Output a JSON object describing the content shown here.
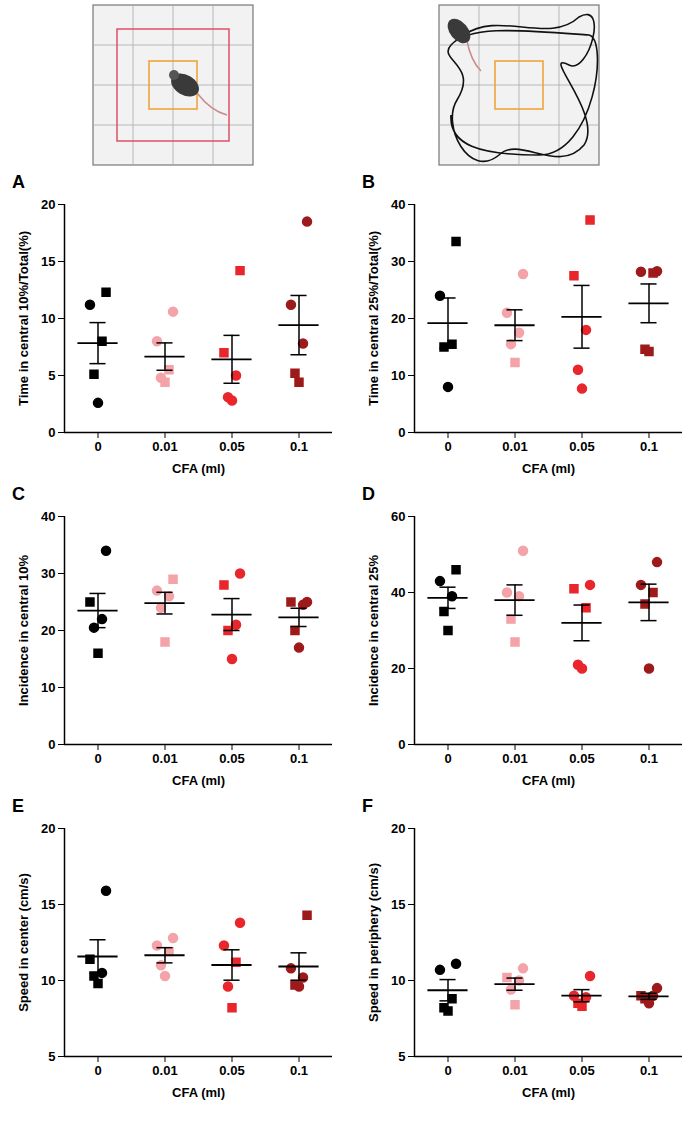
{
  "chart_data": [
    {
      "type": "scatter",
      "title": "A",
      "xlabel": "CFA (ml)",
      "ylabel": "Time in central 10%/Total(%)",
      "categories": [
        "0",
        "0.01",
        "0.05",
        "0.1"
      ],
      "colors": [
        "#000000",
        "#f4a3a8",
        "#e8262b",
        "#9e1a1a"
      ],
      "ylim": [
        0,
        20
      ],
      "yticks": [
        0,
        5,
        10,
        15,
        20
      ],
      "values": [
        [
          12.3,
          11.2,
          8.0,
          5.1,
          2.6
        ],
        [
          10.6,
          8.0,
          5.5,
          4.8,
          4.4
        ],
        [
          14.2,
          7.0,
          5.0,
          3.1,
          2.8
        ],
        [
          18.5,
          11.2,
          7.8,
          5.2,
          4.4
        ]
      ],
      "markers": [
        [
          "square",
          "circle",
          "square",
          "square",
          "circle"
        ],
        [
          "circle",
          "circle",
          "square",
          "circle",
          "square"
        ],
        [
          "square",
          "square",
          "circle",
          "circle",
          "circle"
        ],
        [
          "circle",
          "circle",
          "circle",
          "square",
          "square"
        ]
      ],
      "mean": [
        7.84,
        6.66,
        6.42,
        9.42
      ],
      "sem": [
        1.8,
        1.2,
        2.1,
        2.6
      ]
    },
    {
      "type": "scatter",
      "title": "B",
      "xlabel": "CFA (ml)",
      "ylabel": "Time in central 25%/Total(%)",
      "categories": [
        "0",
        "0.01",
        "0.05",
        "0.1"
      ],
      "colors": [
        "#000000",
        "#f4a3a8",
        "#e8262b",
        "#9e1a1a"
      ],
      "ylim": [
        0,
        40
      ],
      "yticks": [
        0,
        10,
        20,
        30,
        40
      ],
      "values": [
        [
          33.5,
          24.0,
          15.5,
          15.0,
          8.0
        ],
        [
          27.8,
          21.0,
          17.5,
          15.5,
          12.3
        ],
        [
          37.3,
          27.5,
          18.0,
          11.0,
          7.7
        ],
        [
          28.3,
          28.2,
          28.0,
          14.6,
          14.2
        ]
      ],
      "markers": [
        [
          "square",
          "circle",
          "square",
          "square",
          "circle"
        ],
        [
          "circle",
          "circle",
          "circle",
          "circle",
          "square"
        ],
        [
          "square",
          "square",
          "circle",
          "circle",
          "circle"
        ],
        [
          "circle",
          "circle",
          "square",
          "square",
          "square"
        ]
      ],
      "mean": [
        19.2,
        18.82,
        20.3,
        22.66
      ],
      "sem": [
        4.4,
        2.7,
        5.5,
        3.4
      ]
    },
    {
      "type": "scatter",
      "title": "C",
      "xlabel": "CFA (ml)",
      "ylabel": "Incidence in central 10%",
      "categories": [
        "0",
        "0.01",
        "0.05",
        "0.1"
      ],
      "colors": [
        "#000000",
        "#f4a3a8",
        "#e8262b",
        "#9e1a1a"
      ],
      "ylim": [
        0,
        40
      ],
      "yticks": [
        0,
        10,
        20,
        30,
        40
      ],
      "values": [
        [
          34,
          25,
          22,
          20.5,
          16
        ],
        [
          29,
          27,
          26,
          24,
          18
        ],
        [
          30,
          28,
          21,
          20,
          15
        ],
        [
          25,
          25,
          24.5,
          20,
          17
        ]
      ],
      "markers": [
        [
          "circle",
          "square",
          "circle",
          "circle",
          "square"
        ],
        [
          "square",
          "circle",
          "circle",
          "circle",
          "square"
        ],
        [
          "circle",
          "square",
          "circle",
          "square",
          "circle"
        ],
        [
          "circle",
          "square",
          "circle",
          "square",
          "circle"
        ]
      ],
      "mean": [
        23.5,
        24.8,
        22.8,
        22.3
      ],
      "sem": [
        3.0,
        1.9,
        2.8,
        1.6
      ]
    },
    {
      "type": "scatter",
      "title": "D",
      "xlabel": "CFA (ml)",
      "ylabel": "Incidence in central 25%",
      "categories": [
        "0",
        "0.01",
        "0.05",
        "0.1"
      ],
      "colors": [
        "#000000",
        "#f4a3a8",
        "#e8262b",
        "#9e1a1a"
      ],
      "ylim": [
        0,
        60
      ],
      "yticks": [
        0,
        20,
        40,
        60
      ],
      "values": [
        [
          46,
          43,
          39,
          35,
          30
        ],
        [
          51,
          40,
          39,
          33,
          27
        ],
        [
          42,
          41,
          36,
          21,
          20
        ],
        [
          48,
          42,
          40,
          37,
          20
        ]
      ],
      "markers": [
        [
          "square",
          "circle",
          "circle",
          "square",
          "square"
        ],
        [
          "circle",
          "circle",
          "circle",
          "square",
          "square"
        ],
        [
          "circle",
          "square",
          "square",
          "circle",
          "circle"
        ],
        [
          "circle",
          "circle",
          "square",
          "square",
          "circle"
        ]
      ],
      "mean": [
        38.6,
        38.0,
        32.0,
        37.4
      ],
      "sem": [
        2.8,
        4.0,
        4.7,
        4.8
      ]
    },
    {
      "type": "scatter",
      "title": "E",
      "xlabel": "CFA (ml)",
      "ylabel": "Speed in center (cm/s)",
      "categories": [
        "0",
        "0.01",
        "0.05",
        "0.1"
      ],
      "colors": [
        "#000000",
        "#f4a3a8",
        "#e8262b",
        "#9e1a1a"
      ],
      "ylim": [
        5,
        20
      ],
      "yticks": [
        5,
        10,
        15,
        20
      ],
      "values": [
        [
          15.9,
          11.4,
          10.5,
          10.3,
          9.8
        ],
        [
          12.8,
          12.3,
          11.9,
          11.0,
          10.3
        ],
        [
          13.8,
          12.3,
          11.2,
          9.6,
          8.2
        ],
        [
          14.3,
          10.8,
          10.2,
          9.7,
          9.6
        ]
      ],
      "markers": [
        [
          "circle",
          "square",
          "circle",
          "square",
          "square"
        ],
        [
          "circle",
          "circle",
          "square",
          "circle",
          "circle"
        ],
        [
          "circle",
          "circle",
          "square",
          "circle",
          "square"
        ],
        [
          "square",
          "circle",
          "circle",
          "square",
          "circle"
        ]
      ],
      "mean": [
        11.58,
        11.66,
        11.02,
        10.92
      ],
      "sem": [
        1.1,
        0.5,
        1.0,
        0.9
      ]
    },
    {
      "type": "scatter",
      "title": "F",
      "xlabel": "CFA (ml)",
      "ylabel": "Speed in periphery (cm/s)",
      "categories": [
        "0",
        "0.01",
        "0.05",
        "0.1"
      ],
      "colors": [
        "#000000",
        "#f4a3a8",
        "#e8262b",
        "#9e1a1a"
      ],
      "ylim": [
        5,
        20
      ],
      "yticks": [
        5,
        10,
        15,
        20
      ],
      "values": [
        [
          11.1,
          10.7,
          8.8,
          8.2,
          8.0
        ],
        [
          10.8,
          10.2,
          10.0,
          9.4,
          8.4
        ],
        [
          10.3,
          9.0,
          8.9,
          8.5,
          8.3
        ],
        [
          9.5,
          9.0,
          9.0,
          8.8,
          8.5
        ]
      ],
      "markers": [
        [
          "circle",
          "circle",
          "square",
          "square",
          "square"
        ],
        [
          "circle",
          "square",
          "circle",
          "circle",
          "square"
        ],
        [
          "circle",
          "circle",
          "circle",
          "square",
          "square"
        ],
        [
          "circle",
          "square",
          "circle",
          "square",
          "circle"
        ]
      ],
      "mean": [
        9.36,
        9.76,
        9.0,
        8.96
      ],
      "sem": [
        0.7,
        0.4,
        0.4,
        0.2
      ]
    }
  ]
}
